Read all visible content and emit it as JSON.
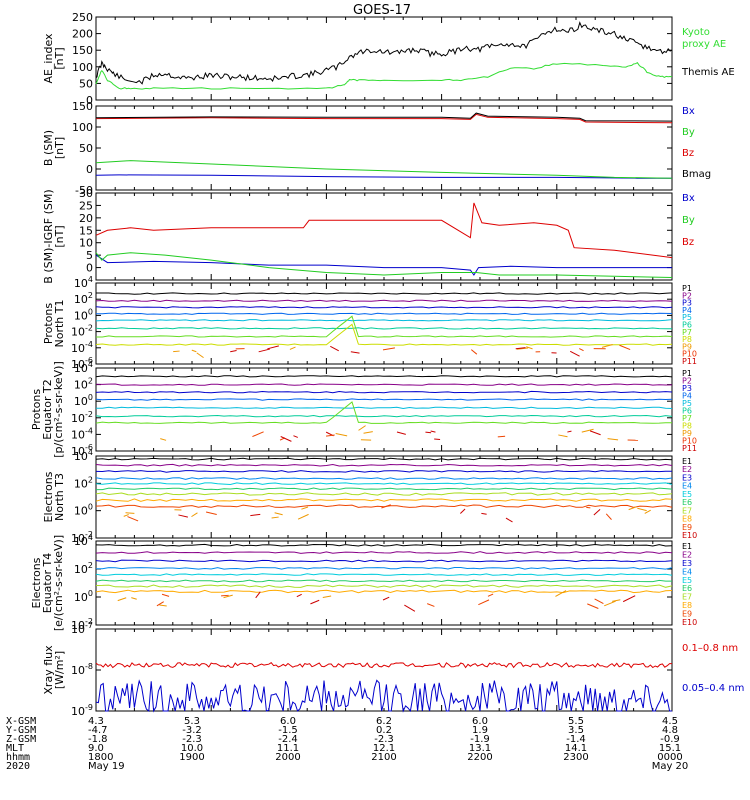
{
  "title": "GOES-17",
  "colors": {
    "black": "#000000",
    "green": "#22cc22",
    "blue": "#0000cc",
    "red": "#dd0000",
    "darkred": "#880000",
    "ae_proxy": "#33dd33"
  },
  "chart_data": [
    {
      "type": "line",
      "panel": "ae",
      "ylabel": [
        "AE_index",
        "[nT]"
      ],
      "ylim": [
        0,
        250
      ],
      "yticks": [
        "0",
        "50",
        "100",
        "150",
        "200",
        "250"
      ],
      "legend": [
        {
          "label": "Kyoto",
          "color": "#33dd33"
        },
        {
          "label": "proxy AE",
          "color": "#33dd33"
        },
        {
          "label": "Themis AE",
          "color": "#000000"
        }
      ],
      "series": [
        {
          "name": "Themis AE",
          "color": "#000000",
          "x": [
            0,
            0.05,
            0.1,
            0.15,
            0.25,
            0.4,
            0.5,
            0.6,
            0.7,
            0.8,
            0.9,
            1.0,
            1.1,
            1.2,
            1.3,
            1.4,
            1.5,
            1.6,
            1.7,
            1.8,
            1.9,
            2.0,
            2.1,
            2.2,
            2.3,
            2.4,
            2.5,
            2.6,
            2.7,
            2.8,
            2.9,
            3.0,
            3.1,
            3.2,
            3.3,
            3.4,
            3.5,
            3.6,
            3.7,
            3.8,
            3.9,
            4.0,
            4.1,
            4.2,
            4.3,
            4.4,
            4.5,
            4.6,
            4.7,
            4.8,
            4.9,
            5.0
          ],
          "y": [
            70,
            110,
            95,
            80,
            60,
            55,
            75,
            80,
            70,
            65,
            70,
            75,
            70,
            70,
            68,
            66,
            65,
            65,
            72,
            75,
            80,
            90,
            100,
            130,
            145,
            150,
            145,
            140,
            150,
            150,
            140,
            140,
            145,
            160,
            150,
            160,
            165,
            170,
            160,
            175,
            205,
            215,
            205,
            225,
            215,
            205,
            200,
            180,
            170,
            155,
            145,
            150
          ]
        },
        {
          "name": "Kyoto proxy AE",
          "color": "#33dd33",
          "x": [
            0,
            0.05,
            0.1,
            0.2,
            0.3,
            0.5,
            1.0,
            1.5,
            2.0,
            2.15,
            2.2,
            2.3,
            2.5,
            3.0,
            3.2,
            3.4,
            3.6,
            3.8,
            4.0,
            4.4,
            4.6,
            4.7,
            4.8,
            4.9,
            5.0
          ],
          "y": [
            50,
            90,
            60,
            35,
            35,
            35,
            35,
            35,
            35,
            45,
            60,
            60,
            60,
            60,
            60,
            70,
            95,
            95,
            110,
            105,
            100,
            110,
            80,
            70,
            70
          ]
        }
      ]
    },
    {
      "type": "line",
      "panel": "b",
      "ylabel": [
        "B (SM)",
        "[nT]"
      ],
      "ylim": [
        -50,
        150
      ],
      "yticks": [
        "-50",
        "0",
        "50",
        "100",
        "150"
      ],
      "legend": [
        {
          "label": "Bx",
          "color": "#0000cc"
        },
        {
          "label": "By",
          "color": "#22cc22"
        },
        {
          "label": "Bz",
          "color": "#dd0000"
        },
        {
          "label": "Bmag",
          "color": "#000000"
        }
      ],
      "series": [
        {
          "name": "Bx",
          "color": "#0000cc",
          "x": [
            0,
            0.2,
            1.0,
            2.0,
            3.0,
            4.0,
            4.7,
            5.0
          ],
          "y": [
            -15,
            -14,
            -15,
            -18,
            -20,
            -20,
            -22,
            -22
          ]
        },
        {
          "name": "By",
          "color": "#22cc22",
          "x": [
            0,
            0.3,
            1.0,
            2.0,
            3.0,
            4.0,
            4.5,
            5.0
          ],
          "y": [
            15,
            20,
            12,
            0,
            -8,
            -15,
            -20,
            -22
          ]
        },
        {
          "name": "Bz",
          "color": "#dd0000",
          "x": [
            0,
            1.0,
            2.0,
            3.0,
            3.25,
            3.3,
            3.4,
            4.0,
            4.2,
            4.25,
            5.0
          ],
          "y": [
            120,
            122,
            120,
            120,
            118,
            130,
            123,
            120,
            118,
            112,
            110
          ]
        },
        {
          "name": "Bmag",
          "color": "#000000",
          "x": [
            0,
            1.0,
            2.0,
            3.0,
            3.25,
            3.3,
            3.4,
            4.0,
            4.2,
            4.25,
            5.0
          ],
          "y": [
            122,
            124,
            123,
            123,
            121,
            133,
            126,
            123,
            121,
            115,
            114
          ]
        }
      ]
    },
    {
      "type": "line",
      "panel": "db",
      "ylabel": [
        "B (SM)-IGRF (SM)",
        "[nT]"
      ],
      "ylim": [
        -5,
        30
      ],
      "yticks": [
        "0",
        "5",
        "10",
        "15",
        "20",
        "25",
        "30"
      ],
      "legend": [
        {
          "label": "Bx",
          "color": "#0000cc"
        },
        {
          "label": "By",
          "color": "#22cc22"
        },
        {
          "label": "Bz",
          "color": "#dd0000"
        }
      ],
      "series": [
        {
          "name": "Bx",
          "color": "#0000cc",
          "x": [
            0,
            0.1,
            0.5,
            1.0,
            1.5,
            2.0,
            2.5,
            3.0,
            3.25,
            3.28,
            3.32,
            3.6,
            4.0,
            4.5,
            5.0
          ],
          "y": [
            5,
            2,
            2.5,
            2,
            1,
            1,
            0,
            0,
            -1,
            -3,
            0,
            0.5,
            0,
            0,
            0
          ]
        },
        {
          "name": "By",
          "color": "#22cc22",
          "x": [
            0,
            0.05,
            0.1,
            0.3,
            0.6,
            1.0,
            1.5,
            2.0,
            2.5,
            3.0,
            3.3,
            3.5,
            4.0,
            4.5,
            5.0
          ],
          "y": [
            6,
            3,
            5,
            6,
            5,
            3,
            0,
            -2,
            -3,
            -2,
            -2,
            -3,
            -3,
            -3.5,
            -4
          ]
        },
        {
          "name": "Bz",
          "color": "#dd0000",
          "x": [
            0,
            0.1,
            0.3,
            0.5,
            1.0,
            1.5,
            1.8,
            1.85,
            2.5,
            3.0,
            3.25,
            3.28,
            3.35,
            3.5,
            3.8,
            4.0,
            4.1,
            4.15,
            4.5,
            5.0
          ],
          "y": [
            13,
            15,
            16,
            15,
            16,
            16,
            16,
            19,
            19,
            19,
            12,
            26,
            18,
            17,
            18,
            17,
            15,
            8,
            7,
            4
          ]
        }
      ]
    },
    {
      "type": "line",
      "panel": "protons_t1",
      "log": true,
      "ylabel": [
        "Protons",
        "North T1"
      ],
      "ylim": [
        -6,
        4
      ],
      "yticks": [
        "10<sup>4</sup>",
        "10<sup>2</sup>",
        "10<sup>0</sup>",
        "10<sup>-2</sup>",
        "10<sup>-4</sup>",
        "10<sup>-6</sup>"
      ],
      "legend": [
        {
          "label": "P1",
          "color": "#000000"
        },
        {
          "label": "P2",
          "color": "#880088"
        },
        {
          "label": "P3",
          "color": "#0000cc"
        },
        {
          "label": "P4",
          "color": "#0066ee"
        },
        {
          "label": "P5",
          "color": "#00bbdd"
        },
        {
          "label": "P6",
          "color": "#00cc99"
        },
        {
          "label": "P7",
          "color": "#66dd22"
        },
        {
          "label": "P8",
          "color": "#ccdd00"
        },
        {
          "label": "P9",
          "color": "#ee9900"
        },
        {
          "label": "P10",
          "color": "#ee3300"
        },
        {
          "label": "P11",
          "color": "#cc0000"
        }
      ],
      "series": [
        {
          "name": "P1",
          "color": "#000000",
          "level": 2.7
        },
        {
          "name": "P2",
          "color": "#880088",
          "level": 1.8
        },
        {
          "name": "P3",
          "color": "#0000cc",
          "level": 1.0
        },
        {
          "name": "P4",
          "color": "#0066ee",
          "level": 0.2
        },
        {
          "name": "P5",
          "color": "#00bbdd",
          "level": -0.6
        },
        {
          "name": "P6",
          "color": "#00cc99",
          "level": -1.6
        },
        {
          "name": "P7",
          "color": "#66dd22",
          "level": -2.6
        },
        {
          "name": "P8",
          "color": "#ccdd00",
          "level": -3.6
        }
      ]
    },
    {
      "type": "line",
      "panel": "protons_t2",
      "log": true,
      "ylabel": [
        "Protons",
        "Equator T2",
        "[p/(cm²-s-sr-keV)]"
      ],
      "ylim": [
        -6,
        4
      ],
      "yticks": [
        "10<sup>4</sup>",
        "10<sup>2</sup>",
        "10<sup>0</sup>",
        "10<sup>-2</sup>",
        "10<sup>-4</sup>",
        "10<sup>-6</sup>"
      ],
      "legend": [
        {
          "label": "P1",
          "color": "#000000"
        },
        {
          "label": "P2",
          "color": "#880088"
        },
        {
          "label": "P3",
          "color": "#0000cc"
        },
        {
          "label": "P4",
          "color": "#0066ee"
        },
        {
          "label": "P5",
          "color": "#00bbdd"
        },
        {
          "label": "P6",
          "color": "#00cc99"
        },
        {
          "label": "P7",
          "color": "#66dd22"
        },
        {
          "label": "P8",
          "color": "#ccdd00"
        },
        {
          "label": "P9",
          "color": "#ee9900"
        },
        {
          "label": "P10",
          "color": "#ee3300"
        },
        {
          "label": "P11",
          "color": "#cc0000"
        }
      ],
      "series": [
        {
          "name": "P1",
          "color": "#000000",
          "level": 3.0
        },
        {
          "name": "P2",
          "color": "#880088",
          "level": 2.0
        },
        {
          "name": "P3",
          "color": "#0000cc",
          "level": 1.1
        },
        {
          "name": "P4",
          "color": "#0066ee",
          "level": 0.2
        },
        {
          "name": "P5",
          "color": "#00bbdd",
          "level": -0.8
        },
        {
          "name": "P6",
          "color": "#00cc99",
          "level": -1.8
        },
        {
          "name": "P7",
          "color": "#66dd22",
          "level": -2.6
        }
      ]
    },
    {
      "type": "line",
      "panel": "electrons_t3",
      "log": true,
      "ylabel": [
        "Electrons",
        "North T3"
      ],
      "ylim": [
        -4,
        4
      ],
      "yticks": [
        "10<sup>4</sup>",
        "10<sup>2</sup>",
        "10<sup>0</sup>",
        "10<sup>-2</sup>"
      ],
      "legend": [
        {
          "label": "E1",
          "color": "#000000"
        },
        {
          "label": "E2",
          "color": "#880088"
        },
        {
          "label": "E3",
          "color": "#0000cc"
        },
        {
          "label": "E4",
          "color": "#0088ee"
        },
        {
          "label": "E5",
          "color": "#00ccdd"
        },
        {
          "label": "E6",
          "color": "#22cc66"
        },
        {
          "label": "E7",
          "color": "#aadd22"
        },
        {
          "label": "E8",
          "color": "#ffaa00"
        },
        {
          "label": "E9",
          "color": "#ee4400"
        },
        {
          "label": "E10",
          "color": "#cc0000"
        }
      ],
      "series": [
        {
          "name": "E1",
          "color": "#000000",
          "level": 3.7
        },
        {
          "name": "E2",
          "color": "#880088",
          "level": 3.1
        },
        {
          "name": "E3",
          "color": "#0000cc",
          "level": 2.5
        },
        {
          "name": "E4",
          "color": "#0088ee",
          "level": 1.8
        },
        {
          "name": "E5",
          "color": "#00ccdd",
          "level": 1.3
        },
        {
          "name": "E6",
          "color": "#22cc66",
          "level": 0.8
        },
        {
          "name": "E7",
          "color": "#aadd22",
          "level": 0.3
        },
        {
          "name": "E8",
          "color": "#ffaa00",
          "level": -0.3
        },
        {
          "name": "E9",
          "color": "#ee4400",
          "level": -0.9
        }
      ]
    },
    {
      "type": "line",
      "panel": "electrons_t4",
      "log": true,
      "ylabel": [
        "Electrons",
        "Equator T4",
        "[e/(cm²-s-sr-keV)]"
      ],
      "ylim": [
        -4,
        4
      ],
      "yticks": [
        "10<sup>4</sup>",
        "10<sup>2</sup>",
        "10<sup>0</sup>",
        "10<sup>-2</sup>"
      ],
      "legend": [
        {
          "label": "E1",
          "color": "#000000"
        },
        {
          "label": "E2",
          "color": "#880088"
        },
        {
          "label": "E3",
          "color": "#0000cc"
        },
        {
          "label": "E4",
          "color": "#0088ee"
        },
        {
          "label": "E5",
          "color": "#00ccdd"
        },
        {
          "label": "E6",
          "color": "#22cc66"
        },
        {
          "label": "E7",
          "color": "#aadd22"
        },
        {
          "label": "E8",
          "color": "#ffaa00"
        },
        {
          "label": "E9",
          "color": "#ee4400"
        },
        {
          "label": "E10",
          "color": "#cc0000"
        }
      ],
      "series": [
        {
          "name": "E1",
          "color": "#000000",
          "level": 3.6
        },
        {
          "name": "E2",
          "color": "#880088",
          "level": 2.9
        },
        {
          "name": "E3",
          "color": "#0000cc",
          "level": 2.1
        },
        {
          "name": "E4",
          "color": "#0088ee",
          "level": 1.4
        },
        {
          "name": "E5",
          "color": "#00ccdd",
          "level": 0.8
        },
        {
          "name": "E6",
          "color": "#22cc66",
          "level": 0.2
        },
        {
          "name": "E7",
          "color": "#aadd22",
          "level": -0.3
        },
        {
          "name": "E8",
          "color": "#ffaa00",
          "level": -0.8
        }
      ]
    },
    {
      "type": "line",
      "panel": "xray",
      "log": true,
      "ylabel": [
        "Xray flux",
        "[W/m²]"
      ],
      "ylim": [
        -9,
        -7
      ],
      "yticks": [
        "10<sup>-7</sup>",
        "10<sup>-8</sup>",
        "10<sup>-9</sup>"
      ],
      "legend": [
        {
          "label": "0.1–0.8 nm",
          "color": "#dd0000"
        },
        {
          "label": "0.05–0.4 nm",
          "color": "#0000cc"
        }
      ],
      "series": [
        {
          "name": "0.1–0.8 nm",
          "color": "#dd0000",
          "level": -7.88
        },
        {
          "name": "0.05–0.4 nm",
          "color": "#0000cc",
          "level": -8.7
        }
      ]
    }
  ],
  "x_axis": {
    "row_labels": [
      "X-GSM",
      "Y-GSM",
      "Z-GSM",
      "MLT",
      "hhmm",
      "2020"
    ],
    "columns": [
      {
        "vals": [
          "4.3",
          "-4.7",
          "-1.8",
          "9.0",
          "1800",
          "May 19"
        ]
      },
      {
        "vals": [
          "5.3",
          "-3.2",
          "-2.3",
          "10.0",
          "1900",
          ""
        ]
      },
      {
        "vals": [
          "6.0",
          "-1.5",
          "-2.4",
          "11.1",
          "2000",
          ""
        ]
      },
      {
        "vals": [
          "6.2",
          "0.2",
          "-2.3",
          "12.1",
          "2100",
          ""
        ]
      },
      {
        "vals": [
          "6.0",
          "1.9",
          "-1.9",
          "13.1",
          "2200",
          ""
        ]
      },
      {
        "vals": [
          "5.5",
          "3.5",
          "-1.4",
          "14.1",
          "2300",
          ""
        ]
      },
      {
        "vals": [
          "4.5",
          "4.8",
          "-0.9",
          "15.1",
          "0000",
          "May 20"
        ]
      }
    ]
  }
}
